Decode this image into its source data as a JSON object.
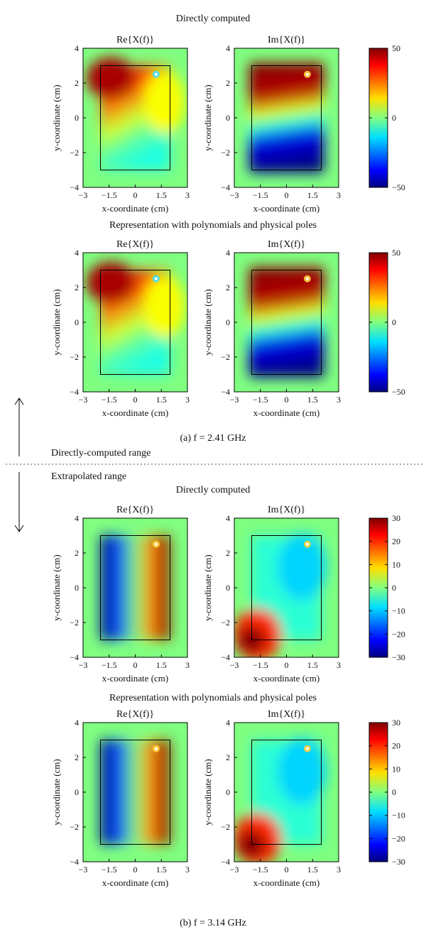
{
  "figure": {
    "boundary": {
      "left_label": "Directly-computed range",
      "right_label": "Extrapolated range"
    },
    "panels": [
      {
        "caption": "(a) f = 2.41 GHz",
        "rows": [
          {
            "title": "Directly computed",
            "colorbar": {
              "min": -50,
              "max": 50,
              "ticks": [
                "50",
                "0",
                "−50"
              ]
            },
            "plots": [
              {
                "title": "Re{X(f)}",
                "field": "re_a"
              },
              {
                "title": "Im{X(f)}",
                "field": "im_a"
              }
            ]
          },
          {
            "title": "Representation with polynomials and physical poles",
            "colorbar": {
              "min": -50,
              "max": 50,
              "ticks": [
                "50",
                "0",
                "−50"
              ]
            },
            "plots": [
              {
                "title": "Re{X(f)}",
                "field": "re_a"
              },
              {
                "title": "Im{X(f)}",
                "field": "im_a"
              }
            ]
          }
        ]
      },
      {
        "caption": "(b) f = 3.14 GHz",
        "rows": [
          {
            "title": "Directly computed",
            "colorbar": {
              "min": -30,
              "max": 30,
              "ticks": [
                "30",
                "20",
                "10",
                "0",
                "−10",
                "−20",
                "−30"
              ]
            },
            "plots": [
              {
                "title": "Re{X(f)}",
                "field": "re_b"
              },
              {
                "title": "Im{X(f)}",
                "field": "im_b"
              }
            ]
          },
          {
            "title": "Representation with polynomials and physical poles",
            "colorbar": {
              "min": -30,
              "max": 30,
              "ticks": [
                "30",
                "20",
                "10",
                "0",
                "−10",
                "−20",
                "−30"
              ]
            },
            "plots": [
              {
                "title": "Re{X(f)}",
                "field": "re_b"
              },
              {
                "title": "Im{X(f)}",
                "field": "im_b"
              }
            ]
          }
        ]
      }
    ]
  },
  "chart_data": {
    "type": "heatmap",
    "colormap": "jet",
    "xlabel": "x-coordinate (cm)",
    "ylabel": "y-coordinate (cm)",
    "xlim": [
      -3,
      3
    ],
    "ylim": [
      -4,
      4
    ],
    "xticks": [
      "−3",
      "−1.5",
      "0",
      "1.5",
      "3"
    ],
    "yticks": [
      "4",
      "2",
      "0",
      "−2",
      "−4"
    ],
    "patch_rectangle": {
      "x": [
        -2,
        2
      ],
      "y": [
        -3,
        3
      ]
    },
    "fields": {
      "re_a": {
        "background": 0,
        "value_inside_near_top_left": 40,
        "value_inside_bottom": -10,
        "pole_location": [
          1.2,
          2.5
        ]
      },
      "im_a": {
        "background": 0,
        "value_inside_top": 50,
        "value_inside_bottom": -50,
        "pole_location": [
          1.2,
          2.5
        ]
      },
      "re_b": {
        "background": 0,
        "value_inside_left_edge": -30,
        "value_inside_right_edge": 30,
        "pole_location": [
          1.2,
          2.5
        ]
      },
      "im_b": {
        "background": 0,
        "value_inside_top_right": -10,
        "value_inside_bottom_left": 30,
        "pole_location": [
          1.2,
          2.5
        ]
      }
    }
  }
}
